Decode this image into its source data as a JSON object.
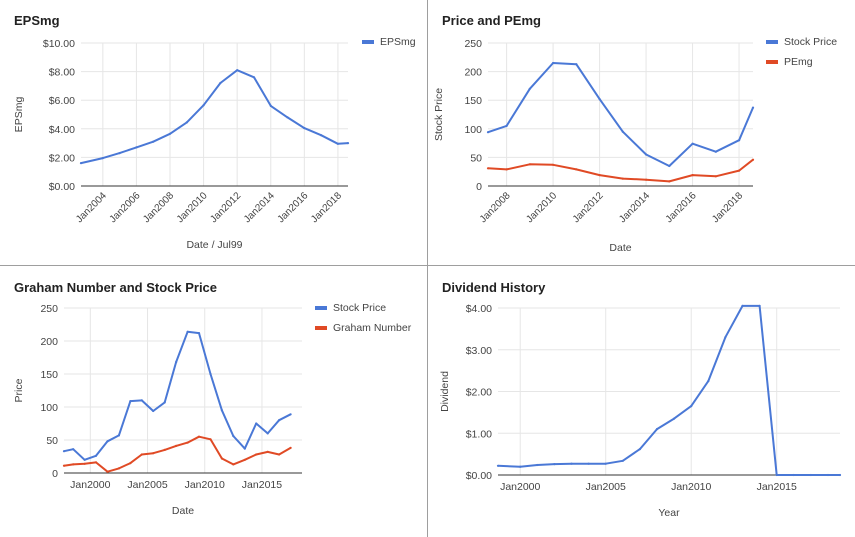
{
  "colors": {
    "blue": "#4a78d6",
    "red": "#e04a25",
    "grid": "#e6e6e6",
    "axis": "#333333",
    "text": "#444444",
    "title": "#222222"
  },
  "chart_data": [
    {
      "type": "line",
      "title": "EPSmg",
      "xlabel": "Date / Jul99",
      "ylabel": "EPSmg",
      "ylim": [
        0,
        10
      ],
      "yticks": [
        0,
        2,
        4,
        6,
        8,
        10
      ],
      "ytick_labels": [
        "$0.00",
        "$2.00",
        "$4.00",
        "$6.00",
        "$8.00",
        "$10.00"
      ],
      "xlim": [
        2002.7,
        2018.6
      ],
      "xticks": [
        2004,
        2006,
        2008,
        2010,
        2012,
        2014,
        2016,
        2018
      ],
      "xtick_labels": [
        "Jan2004",
        "Jan2006",
        "Jan2008",
        "Jan2010",
        "Jan2012",
        "Jan2014",
        "Jan2016",
        "Jan2018"
      ],
      "xtick_rotated": true,
      "grid": true,
      "legend": "top-right",
      "series": [
        {
          "name": "EPSmg",
          "color": "#4a78d6",
          "x": [
            2002.7,
            2004,
            2005,
            2006,
            2007,
            2008,
            2009,
            2010,
            2011,
            2012,
            2013,
            2014,
            2015,
            2016,
            2017,
            2018,
            2018.6
          ],
          "values": [
            1.6,
            1.95,
            2.3,
            2.7,
            3.1,
            3.65,
            4.45,
            5.65,
            7.2,
            8.1,
            7.6,
            5.6,
            4.8,
            4.05,
            3.55,
            2.95,
            3.0
          ]
        }
      ]
    },
    {
      "type": "line",
      "title": "Price and PEmg",
      "xlabel": "Date",
      "ylabel": "Stock Price",
      "ylim": [
        0,
        250
      ],
      "yticks": [
        0,
        50,
        100,
        150,
        200,
        250
      ],
      "ytick_labels": [
        "0",
        "50",
        "100",
        "150",
        "200",
        "250"
      ],
      "xlim": [
        2007.2,
        2018.6
      ],
      "xticks": [
        2008,
        2010,
        2012,
        2014,
        2016,
        2018
      ],
      "xtick_labels": [
        "Jan2008",
        "Jan2010",
        "Jan2012",
        "Jan2014",
        "Jan2016",
        "Jan2018"
      ],
      "xtick_rotated": true,
      "grid": true,
      "legend": "top-right",
      "series": [
        {
          "name": "Stock Price",
          "color": "#4a78d6",
          "x": [
            2007.2,
            2008,
            2009,
            2010,
            2011,
            2012,
            2013,
            2014,
            2015,
            2016,
            2017,
            2018,
            2018.6
          ],
          "values": [
            94,
            105,
            170,
            215,
            213,
            152,
            95,
            55,
            35,
            74,
            60,
            80,
            137
          ]
        },
        {
          "name": "PEmg",
          "color": "#e04a25",
          "x": [
            2007.2,
            2008,
            2009,
            2010,
            2011,
            2012,
            2013,
            2014,
            2015,
            2016,
            2017,
            2018,
            2018.6
          ],
          "values": [
            31,
            29,
            38,
            37,
            29,
            19,
            13,
            11,
            8,
            19,
            17,
            27,
            46
          ]
        }
      ]
    },
    {
      "type": "line",
      "title": "Graham Number and Stock Price",
      "xlabel": "Date",
      "ylabel": "Price",
      "ylim": [
        0,
        250
      ],
      "yticks": [
        0,
        50,
        100,
        150,
        200,
        250
      ],
      "ytick_labels": [
        "0",
        "50",
        "100",
        "150",
        "200",
        "250"
      ],
      "xlim": [
        1997.7,
        2018.5
      ],
      "xticks": [
        2000,
        2005,
        2010,
        2015
      ],
      "xtick_labels": [
        "Jan2000",
        "Jan2005",
        "Jan2010",
        "Jan2015"
      ],
      "xtick_rotated": false,
      "grid": true,
      "legend": "top-right",
      "series": [
        {
          "name": "Stock Price",
          "color": "#4a78d6",
          "x": [
            1997.7,
            1998.5,
            1999.5,
            2000.5,
            2001.5,
            2002.5,
            2003.5,
            2004.5,
            2005.5,
            2006.5,
            2007.5,
            2008.5,
            2009.5,
            2010.5,
            2011.5,
            2012.5,
            2013.5,
            2014.5,
            2015.5,
            2016.5,
            2017.5
          ],
          "values": [
            33,
            36,
            20,
            26,
            48,
            57,
            109,
            110,
            94,
            107,
            168,
            214,
            212,
            150,
            95,
            56,
            37,
            75,
            60,
            80,
            89
          ]
        },
        {
          "name": "Graham Number",
          "color": "#e04a25",
          "x": [
            1997.7,
            1998.5,
            1999.5,
            2000.5,
            2001.5,
            2002.5,
            2003.5,
            2004.5,
            2005.5,
            2006.5,
            2007.5,
            2008.5,
            2009.5,
            2010.5,
            2011.5,
            2012.5,
            2013.5,
            2014.5,
            2015.5,
            2016.5,
            2017.5
          ],
          "values": [
            11,
            13,
            14,
            16,
            2,
            7,
            15,
            28,
            30,
            35,
            41,
            46,
            55,
            51,
            22,
            13,
            20,
            28,
            32,
            28,
            38
          ]
        }
      ]
    },
    {
      "type": "line",
      "title": "Dividend History",
      "xlabel": "Year",
      "ylabel": "Dividend",
      "ylim": [
        0,
        4
      ],
      "yticks": [
        0,
        1,
        2,
        3,
        4
      ],
      "ytick_labels": [
        "$0.00",
        "$1.00",
        "$2.00",
        "$3.00",
        "$4.00"
      ],
      "xlim": [
        1998.7,
        2018.7
      ],
      "xticks": [
        2000,
        2005,
        2010,
        2015
      ],
      "xtick_labels": [
        "Jan2000",
        "Jan2005",
        "Jan2010",
        "Jan2015"
      ],
      "xtick_rotated": false,
      "grid": true,
      "legend": "none",
      "series": [
        {
          "name": "",
          "color": "#4a78d6",
          "x": [
            1998.7,
            2000,
            2001,
            2002,
            2003,
            2004,
            2005,
            2006,
            2007,
            2008,
            2009,
            2010,
            2011,
            2012,
            2013,
            2014,
            2015,
            2016,
            2017,
            2018,
            2018.7
          ],
          "values": [
            0.22,
            0.2,
            0.24,
            0.26,
            0.27,
            0.27,
            0.27,
            0.34,
            0.62,
            1.1,
            1.35,
            1.65,
            2.25,
            3.3,
            4.05,
            4.05,
            0.0,
            0.0,
            0.0,
            0.0,
            0.0
          ]
        }
      ]
    }
  ]
}
